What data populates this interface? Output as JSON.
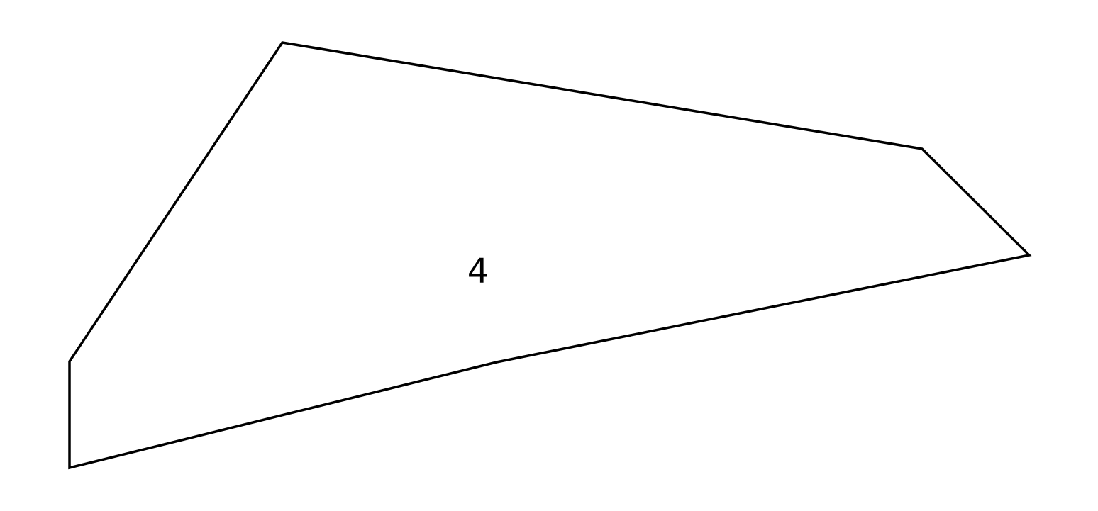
{
  "diagram": {
    "region": {
      "label": "4",
      "stroke_color": "#000000",
      "fill_color": "#ffffff"
    }
  }
}
